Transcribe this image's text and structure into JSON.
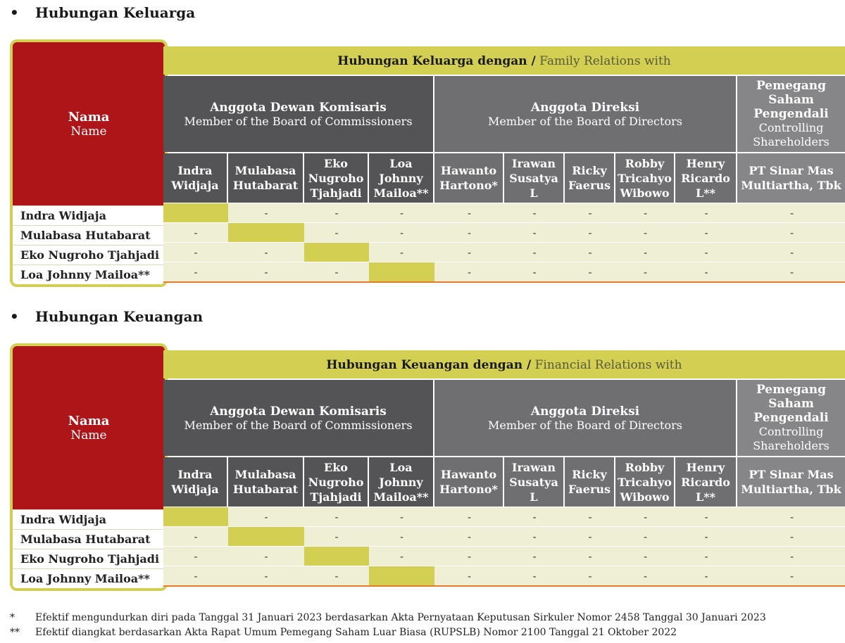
{
  "sections": [
    {
      "title": "Hubungan Keluarga",
      "header_bold": "Hubungan Keluarga dengan /",
      "header_normal": "Family Relations with"
    },
    {
      "title": "Hubungan Keuangan",
      "header_bold": "Hubungan Keuangan dengan /",
      "header_normal": "Financial Relations with"
    }
  ],
  "name_header": {
    "bold": "Nama",
    "normal": "Name"
  },
  "groups": [
    {
      "bold": "Anggota Dewan Komisaris",
      "normal": "Member of the Board of Commissioners"
    },
    {
      "bold": "Anggota Direksi",
      "normal": "Member of the Board of Directors"
    },
    {
      "bold": "Pemegang Saham Pengendali",
      "normal": "Controlling Shareholders"
    }
  ],
  "columns": [
    "Indra Widjaja",
    "Mulabasa Hutabarat",
    "Eko Nugroho Tjahjadi",
    "Loa Johnny Mailoa**",
    "Hawanto Hartono*",
    "Irawan Susatya L",
    "Ricky Faerus",
    "Robby Tricahyo Wibowo",
    "Henry Ricardo L**",
    "PT Sinar Mas Multiartha, Tbk"
  ],
  "rows": [
    "Indra Widjaja",
    "Mulabasa Hutabarat",
    "Eko Nugroho Tjahjadi",
    "Loa Johnny Mailoa**"
  ],
  "cell_value": "-",
  "footnotes": [
    {
      "mark": "*",
      "text": "Efektif mengundurkan diri pada Tanggal 31 Januari 2023 berdasarkan Akta Pernyataan Keputusan Sirkuler Nomor 2458 Tanggal 30 Januari 2023"
    },
    {
      "mark": "**",
      "text": "Efektif diangkat berdasarkan Akta Rapat Umum Pemegang Saham Luar Biasa (RUPSLB) Nomor 2100 Tanggal 21 Oktober 2022"
    }
  ],
  "colors": {
    "red": "#ae1518",
    "lime": "#d2cf53",
    "cell": "#efefd6",
    "orange": "#e8782a"
  }
}
